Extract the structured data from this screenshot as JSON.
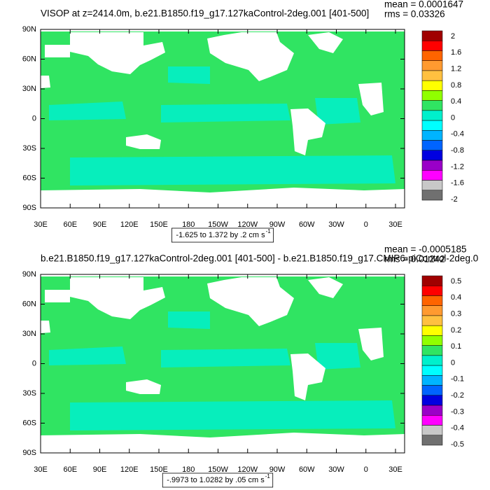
{
  "panels": [
    {
      "title": "VISOP at z=2414.0m, b.e21.B1850.f19_g17.127kaControl-2deg.001 [401-500]",
      "mean": "mean = 0.0001647",
      "rms": "rms = 0.03326",
      "lat_labels": [
        "90N",
        "60N",
        "30N",
        "0",
        "30S",
        "60S",
        "90S"
      ],
      "lon_labels": [
        "30E",
        "60E",
        "90E",
        "120E",
        "150E",
        "180",
        "150W",
        "120W",
        "90W",
        "60W",
        "30W",
        "0",
        "30E"
      ],
      "colorbar_labels": [
        "2",
        "1.6",
        "1.2",
        "0.8",
        "0.4",
        "0",
        "-0.4",
        "-0.8",
        "-1.2",
        "-1.6",
        "-2"
      ],
      "range_label": "-1.625 to 1.372 by .2 cm s",
      "range_exponent": "-1"
    },
    {
      "title": "b.e21.B1850.f19_g17.127kaControl-2deg.001 [401-500] - b.e21.B1850.f19_g17.CMIP6-piControl-2deg.0",
      "mean": "mean = -0.0005185",
      "rms": "rms = 0.01242",
      "lat_labels": [
        "90N",
        "60N",
        "30N",
        "0",
        "30S",
        "60S",
        "90S"
      ],
      "lon_labels": [
        "30E",
        "60E",
        "90E",
        "120E",
        "150E",
        "180",
        "150W",
        "120W",
        "90W",
        "60W",
        "30W",
        "0",
        "30E"
      ],
      "colorbar_labels": [
        "0.5",
        "0.4",
        "0.3",
        "0.2",
        "0.1",
        "0",
        "-0.1",
        "-0.2",
        "-0.3",
        "-0.4",
        "-0.5"
      ],
      "range_label": "-.9973 to 1.0282 by .05 cm s",
      "range_exponent": "-1"
    }
  ]
}
